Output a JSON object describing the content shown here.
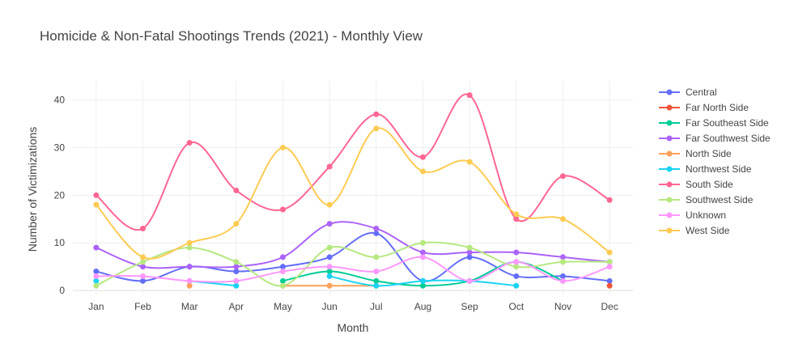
{
  "chart_data": {
    "type": "line",
    "title": "Homicide & Non-Fatal Shootings Trends (2021) - Monthly View",
    "xlabel": "Month",
    "ylabel": "Number of Victimizations",
    "categories": [
      "Jan",
      "Feb",
      "Mar",
      "Apr",
      "May",
      "Jun",
      "Jul",
      "Aug",
      "Sep",
      "Oct",
      "Nov",
      "Dec"
    ],
    "ylim": [
      -1,
      44
    ],
    "yticks": [
      0,
      10,
      20,
      30,
      40
    ],
    "grid": true,
    "legend_position": "right",
    "series": [
      {
        "name": "Central",
        "color": "#636efa",
        "values": [
          4,
          2,
          5,
          4,
          5,
          7,
          12,
          2,
          7,
          3,
          3,
          2
        ]
      },
      {
        "name": "Far North Side",
        "color": "#EF553B",
        "values": [
          null,
          null,
          null,
          null,
          null,
          null,
          null,
          null,
          null,
          null,
          null,
          1
        ]
      },
      {
        "name": "Far Southeast Side",
        "color": "#00cc96",
        "values": [
          null,
          null,
          null,
          null,
          2,
          4,
          2,
          1,
          2,
          6,
          2,
          null
        ]
      },
      {
        "name": "Far Southwest Side",
        "color": "#ab63fa",
        "values": [
          9,
          5,
          5,
          5,
          7,
          14,
          13,
          8,
          8,
          8,
          7,
          6
        ]
      },
      {
        "name": "North Side",
        "color": "#FFA15A",
        "values": [
          null,
          null,
          1,
          null,
          1,
          1,
          1,
          null,
          null,
          null,
          null,
          null
        ]
      },
      {
        "name": "Northwest Side",
        "color": "#19d3f3",
        "values": [
          2,
          null,
          2,
          1,
          null,
          3,
          1,
          2,
          2,
          1,
          null,
          null
        ]
      },
      {
        "name": "South Side",
        "color": "#FF6692",
        "values": [
          20,
          13,
          31,
          21,
          17,
          26,
          37,
          28,
          41,
          15,
          24,
          19
        ]
      },
      {
        "name": "Southwest Side",
        "color": "#B6E880",
        "values": [
          1,
          6,
          9,
          6,
          1,
          9,
          7,
          10,
          9,
          5,
          6,
          6
        ]
      },
      {
        "name": "Unknown",
        "color": "#FF97FF",
        "values": [
          3,
          3,
          2,
          2,
          4,
          5,
          4,
          7,
          2,
          6,
          2,
          5
        ]
      },
      {
        "name": "West Side",
        "color": "#FECB52",
        "values": [
          18,
          7,
          10,
          14,
          30,
          18,
          34,
          25,
          27,
          16,
          15,
          8
        ]
      }
    ]
  }
}
